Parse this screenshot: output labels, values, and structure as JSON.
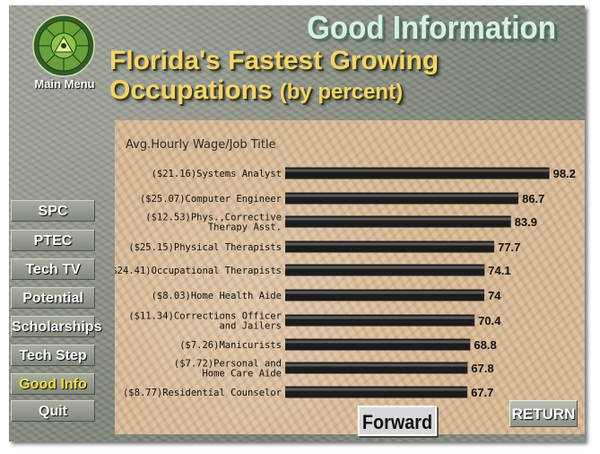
{
  "header": {
    "title": "Good Information",
    "page_title_line1": "Florida's Fastest Growing",
    "page_title_line2": "Occupations",
    "page_title_suffix": "(by percent)"
  },
  "menu": {
    "logo_icon": "career-wheel-logo-icon",
    "main_menu_label": "Main Menu",
    "items": [
      {
        "label": "SPC",
        "active": false
      },
      {
        "label": "PTEC",
        "active": false
      },
      {
        "label": "Tech TV",
        "active": false
      },
      {
        "label": "Potential",
        "active": false
      },
      {
        "label": "Scholarships",
        "active": false
      },
      {
        "label": "Tech Step",
        "active": false
      },
      {
        "label": "Good Info",
        "active": true
      },
      {
        "label": "Quit",
        "active": false
      }
    ]
  },
  "footer": {
    "forward_label": "Forward",
    "return_label": "RETURN"
  },
  "colors": {
    "title_yellow": "#f3d46a",
    "header_green": "#d8efe0",
    "bar": "#1c1c1c",
    "active_nav": "#f2e040"
  },
  "chart_data": {
    "type": "bar",
    "orientation": "horizontal",
    "title": "Avg.Hourly Wage/Job Title",
    "xlim": [
      0,
      100
    ],
    "grid": false,
    "legend": "none",
    "categories": [
      [
        "($21.16)Systems Analyst"
      ],
      [
        "($25.07)Computer Engineer"
      ],
      [
        "($12.53)Phys.,Corrective",
        "Therapy Asst."
      ],
      [
        "($25.15)Physical Therapists"
      ],
      [
        "($24.41)Occupational Therapists"
      ],
      [
        "($8.03)Home Health Aide"
      ],
      [
        "($11.34)Corrections Officer",
        "and Jailers"
      ],
      [
        "($7.26)Manicurists"
      ],
      [
        "($7.72)Personal and",
        "Home Care Aide"
      ],
      [
        "($8.77)Residential Counselor"
      ]
    ],
    "values": [
      98.2,
      86.7,
      83.9,
      77.7,
      74.1,
      74,
      70.4,
      68.8,
      67.8,
      67.7
    ],
    "value_labels": [
      "98.2",
      "86.7",
      "83.9",
      "77.7",
      "74.1",
      "74",
      "70.4",
      "68.8",
      "67.8",
      "67.7"
    ]
  }
}
